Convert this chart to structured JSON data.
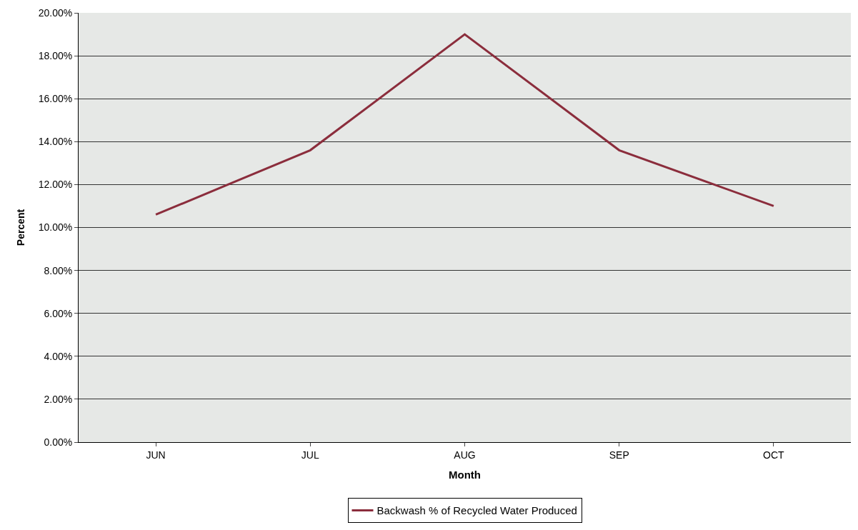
{
  "chart_data": {
    "type": "line",
    "xlabel": "Month",
    "ylabel": "Percent",
    "categories": [
      "JUN",
      "JUL",
      "AUG",
      "SEP",
      "OCT"
    ],
    "series": [
      {
        "name": "Backwash % of Recycled Water Produced",
        "color": "#8b2d3c",
        "values": [
          10.6,
          13.6,
          19.0,
          13.6,
          11.0
        ]
      }
    ],
    "ylim": [
      0,
      20
    ],
    "yticks": [
      {
        "value": 0,
        "label": "0.00%"
      },
      {
        "value": 2,
        "label": "2.00%"
      },
      {
        "value": 4,
        "label": "4.00%"
      },
      {
        "value": 6,
        "label": "6.00%"
      },
      {
        "value": 8,
        "label": "8.00%"
      },
      {
        "value": 10,
        "label": "10.00%"
      },
      {
        "value": 12,
        "label": "12.00%"
      },
      {
        "value": 14,
        "label": "14.00%"
      },
      {
        "value": 16,
        "label": "16.00%"
      },
      {
        "value": 18,
        "label": "18.00%"
      },
      {
        "value": 20,
        "label": "20.00%"
      }
    ],
    "grid": "y",
    "legend": "bottom",
    "marker": "none",
    "line_style": "solid"
  }
}
